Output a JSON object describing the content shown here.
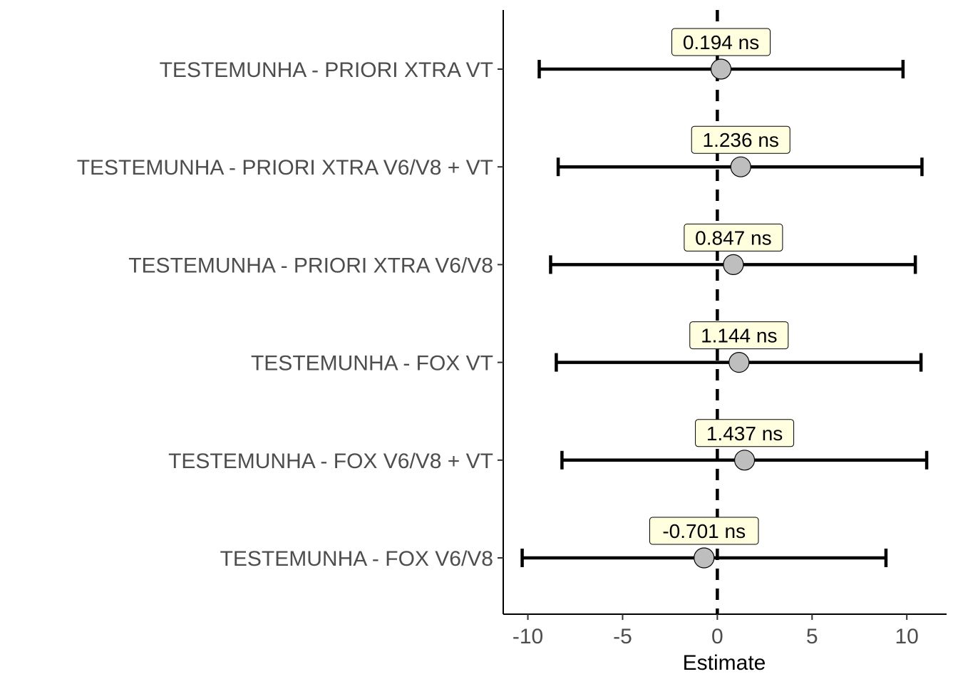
{
  "chart_data": {
    "type": "errorbar",
    "xlabel": "Estimate",
    "ylabel": "",
    "xlim": [
      -11.3,
      12.1
    ],
    "xticks": [
      -10,
      -5,
      0,
      5,
      10
    ],
    "xtick_labels": [
      "-10",
      "-5",
      "0",
      "5",
      "10"
    ],
    "reference_line": 0,
    "grid": false,
    "categories": [
      "TESTEMUNHA  -  PRIORI XTRA VT",
      "TESTEMUNHA  -  PRIORI XTRA V6/V8 + VT",
      "TESTEMUNHA  -  PRIORI XTRA V6/V8",
      "TESTEMUNHA  -  FOX VT",
      "TESTEMUNHA  -  FOX V6/V8 + VT",
      "TESTEMUNHA  -  FOX V6/V8"
    ],
    "estimates": [
      0.194,
      1.236,
      0.847,
      1.144,
      1.437,
      -0.701
    ],
    "lower": [
      -9.4,
      -8.4,
      -8.8,
      -8.5,
      -8.2,
      -10.3
    ],
    "upper": [
      9.8,
      10.8,
      10.45,
      10.75,
      11.05,
      8.9
    ],
    "labels": [
      "0.194 ns",
      "1.236 ns",
      "0.847 ns",
      "1.144 ns",
      "1.437 ns",
      "-0.701 ns"
    ],
    "colors": {
      "point_fill": "#bebebe",
      "label_fill": "#ffffe0",
      "bar": "#000000",
      "axis_text": "#4d4d4d"
    }
  }
}
